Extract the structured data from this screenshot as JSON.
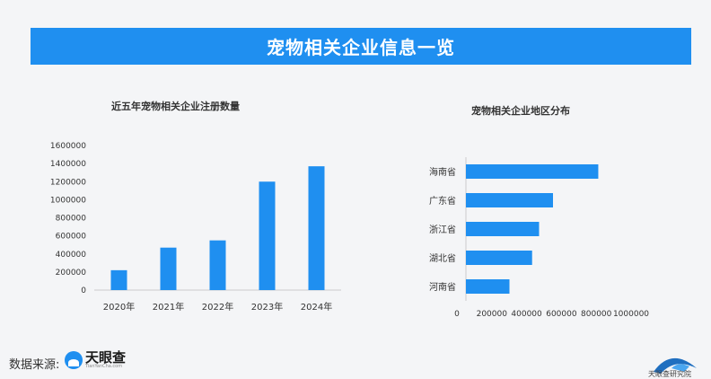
{
  "header": {
    "title": "宠物相关企业信息一览"
  },
  "colors": {
    "accent": "#1f8ff0",
    "bar": "#1f8ff0",
    "axis_text": "#333333"
  },
  "footer": {
    "source_label": "数据来源:",
    "logo_name": "天眼查",
    "logo_sub": "TianYanCha.com",
    "corner_text": "天眼查研究院"
  },
  "chart_data": [
    {
      "type": "bar",
      "title": "近五年宠物相关企业注册数量",
      "categories": [
        "2020年",
        "2021年",
        "2022年",
        "2023年",
        "2024年"
      ],
      "values": [
        220000,
        470000,
        550000,
        1200000,
        1370000
      ],
      "yticks": [
        "0",
        "200000",
        "400000",
        "600000",
        "800000",
        "1000000",
        "1200000",
        "1400000",
        "1600000"
      ],
      "ylim": [
        0,
        1600000
      ],
      "grid": false
    },
    {
      "type": "bar",
      "orientation": "horizontal",
      "title": "宠物相关企业地区分布",
      "categories": [
        "海南省",
        "广东省",
        "浙江省",
        "湖北省",
        "河南省"
      ],
      "values": [
        760000,
        500000,
        420000,
        380000,
        250000
      ],
      "xticks": [
        "0",
        "200000",
        "400000",
        "600000",
        "800000",
        "1000000"
      ],
      "xlim": [
        0,
        1000000
      ],
      "grid": false
    }
  ]
}
